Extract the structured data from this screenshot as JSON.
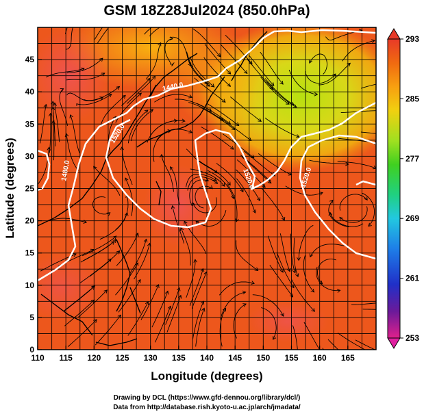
{
  "title": "GSM 18Z28Jul2024 (850.0hPa)",
  "xaxis": {
    "label": "Longitude (degrees)",
    "range": [
      110,
      170
    ],
    "ticks": [
      "110",
      "115",
      "120",
      "125",
      "130",
      "135",
      "140",
      "145",
      "150",
      "155",
      "160",
      "165"
    ]
  },
  "yaxis": {
    "label": "Latitude  (degrees)",
    "range": [
      0,
      50
    ],
    "ticks": [
      "0",
      "5",
      "10",
      "15",
      "20",
      "25",
      "30",
      "35",
      "40",
      "45"
    ]
  },
  "colorbar": {
    "range": [
      253,
      293
    ],
    "ticks": [
      "293",
      "285",
      "277",
      "269",
      "261",
      "253"
    ],
    "colors": [
      "#e0208c",
      "#6a1a9a",
      "#2030c8",
      "#1e7fe8",
      "#22c8e0",
      "#20d080",
      "#40d020",
      "#a0e020",
      "#f0d010",
      "#f8a010",
      "#f06a10",
      "#e83a28"
    ]
  },
  "contours": [
    {
      "label": "1440.0"
    },
    {
      "label": "1480.0"
    },
    {
      "label": "1520.0"
    },
    {
      "label": "1520.0"
    },
    {
      "label": "1520.0"
    }
  ],
  "credits": {
    "line1": "Drawing by DCL (https://www.gfd-dennou.org/library/dcl/)",
    "line2": "Data from http://database.rish.kyoto-u.ac.jp/arch/jmadata/"
  }
}
